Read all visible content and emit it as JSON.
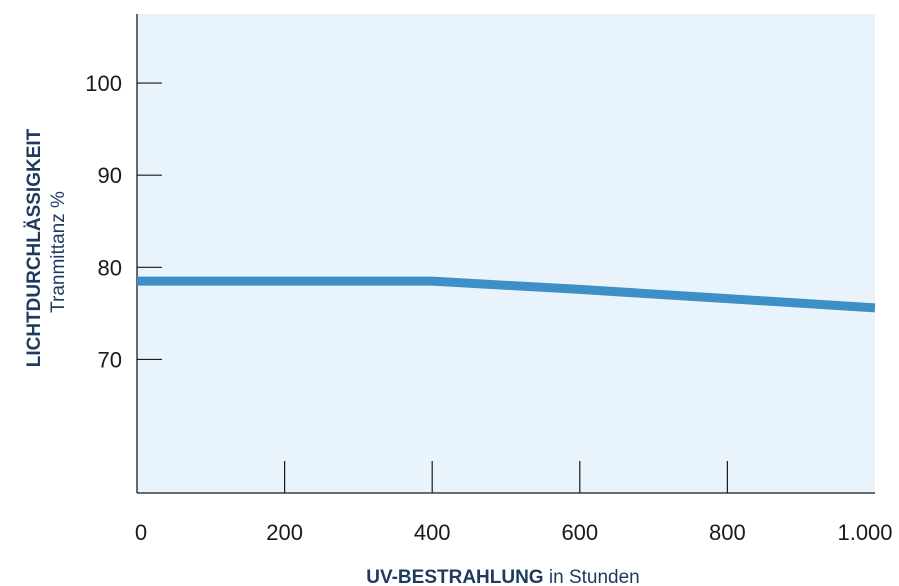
{
  "chart_data": {
    "type": "line",
    "x": [
      0,
      400,
      600,
      800,
      1000
    ],
    "series": [
      {
        "values": [
          78.5,
          78.5,
          77.6,
          76.6,
          75.6
        ]
      }
    ],
    "xlim": [
      0,
      1000
    ],
    "ylim": [
      55.5,
      107.5
    ],
    "xticks": [
      0,
      200,
      400,
      600,
      800,
      1000
    ],
    "xtick_labels": [
      "0",
      "200",
      "400",
      "600",
      "800",
      "1.000"
    ],
    "yticks": [
      70,
      80,
      90,
      100
    ],
    "ytick_labels": [
      "70",
      "80",
      "90",
      "100"
    ],
    "xlabel_bold": "UV-BESTRAHLUNG",
    "xlabel_rest": " in Stunden",
    "ylabel_bold": "LICHTDURCHLÄSSIGKEIT",
    "ylabel_sub": "Tranmittanz %",
    "grid": false,
    "colors": {
      "background": "#e9f3fb",
      "line": "#3e8ec8",
      "axis": "#1a1a1a",
      "title": "#1f3a5f"
    }
  }
}
